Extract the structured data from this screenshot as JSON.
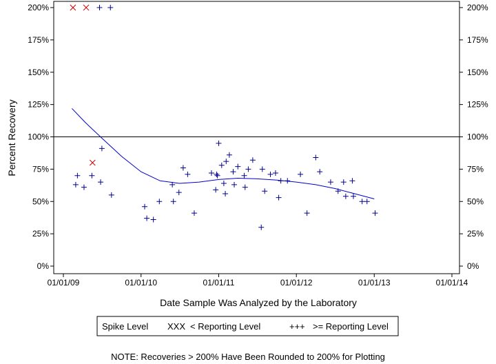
{
  "chart_data": {
    "type": "scatter",
    "xlabel": "Date Sample Was Analyzed by the Laboratory",
    "ylabel": "Percent Recovery",
    "xlim": [
      "2009-01-01",
      "2014-01-01"
    ],
    "ylim": [
      0,
      200
    ],
    "x_ticks": [
      "01/01/09",
      "01/01/10",
      "01/01/11",
      "01/01/12",
      "01/01/13",
      "01/01/14"
    ],
    "x_tick_dates": [
      "2009-01-01",
      "2010-01-01",
      "2011-01-01",
      "2012-01-01",
      "2013-01-01",
      "2014-01-01"
    ],
    "y_ticks": [
      "0%",
      "25%",
      "50%",
      "75%",
      "100%",
      "125%",
      "150%",
      "175%",
      "200%"
    ],
    "y_tick_values": [
      0,
      25,
      50,
      75,
      100,
      125,
      150,
      175,
      200
    ],
    "reference_line": 100,
    "grid": false,
    "series": [
      {
        "name": "< Reporting Level",
        "marker": "x",
        "color": "#cc0000",
        "points": [
          {
            "x": "2009-02-15",
            "y": 200
          },
          {
            "x": "2009-04-18",
            "y": 200
          },
          {
            "x": "2009-05-18",
            "y": 80
          }
        ]
      },
      {
        "name": ">= Reporting Level",
        "marker": "+",
        "color": "#00008b",
        "points": [
          {
            "x": "2009-02-28",
            "y": 63
          },
          {
            "x": "2009-03-08",
            "y": 70
          },
          {
            "x": "2009-04-08",
            "y": 61
          },
          {
            "x": "2009-05-15",
            "y": 70
          },
          {
            "x": "2009-06-20",
            "y": 200
          },
          {
            "x": "2009-06-25",
            "y": 65
          },
          {
            "x": "2009-07-01",
            "y": 91
          },
          {
            "x": "2009-08-10",
            "y": 200
          },
          {
            "x": "2009-08-15",
            "y": 55
          },
          {
            "x": "2010-01-18",
            "y": 46
          },
          {
            "x": "2010-01-28",
            "y": 37
          },
          {
            "x": "2010-02-28",
            "y": 36
          },
          {
            "x": "2010-03-28",
            "y": 50
          },
          {
            "x": "2010-05-28",
            "y": 63
          },
          {
            "x": "2010-06-02",
            "y": 50
          },
          {
            "x": "2010-06-28",
            "y": 57
          },
          {
            "x": "2010-07-18",
            "y": 76
          },
          {
            "x": "2010-08-08",
            "y": 71
          },
          {
            "x": "2010-09-08",
            "y": 41
          },
          {
            "x": "2010-11-28",
            "y": 72
          },
          {
            "x": "2010-12-18",
            "y": 59
          },
          {
            "x": "2010-12-22",
            "y": 71
          },
          {
            "x": "2010-12-26",
            "y": 70
          },
          {
            "x": "2011-01-01",
            "y": 95
          },
          {
            "x": "2011-01-15",
            "y": 78
          },
          {
            "x": "2011-01-25",
            "y": 64
          },
          {
            "x": "2011-02-01",
            "y": 56
          },
          {
            "x": "2011-02-05",
            "y": 81
          },
          {
            "x": "2011-02-20",
            "y": 86
          },
          {
            "x": "2011-03-10",
            "y": 73
          },
          {
            "x": "2011-03-15",
            "y": 63
          },
          {
            "x": "2011-04-01",
            "y": 77
          },
          {
            "x": "2011-05-01",
            "y": 70
          },
          {
            "x": "2011-05-05",
            "y": 61
          },
          {
            "x": "2011-05-20",
            "y": 75
          },
          {
            "x": "2011-06-10",
            "y": 82
          },
          {
            "x": "2011-07-20",
            "y": 30
          },
          {
            "x": "2011-07-25",
            "y": 75
          },
          {
            "x": "2011-08-05",
            "y": 58
          },
          {
            "x": "2011-09-01",
            "y": 71
          },
          {
            "x": "2011-09-25",
            "y": 72
          },
          {
            "x": "2011-10-10",
            "y": 53
          },
          {
            "x": "2011-10-20",
            "y": 66
          },
          {
            "x": "2011-11-20",
            "y": 66
          },
          {
            "x": "2012-01-20",
            "y": 71
          },
          {
            "x": "2012-02-20",
            "y": 41
          },
          {
            "x": "2012-04-01",
            "y": 84
          },
          {
            "x": "2012-04-20",
            "y": 73
          },
          {
            "x": "2012-06-10",
            "y": 65
          },
          {
            "x": "2012-07-15",
            "y": 58
          },
          {
            "x": "2012-08-10",
            "y": 65
          },
          {
            "x": "2012-08-20",
            "y": 54
          },
          {
            "x": "2012-09-20",
            "y": 66
          },
          {
            "x": "2012-09-25",
            "y": 54
          },
          {
            "x": "2012-11-05",
            "y": 50
          },
          {
            "x": "2012-11-28",
            "y": 50
          },
          {
            "x": "2013-01-05",
            "y": 41
          }
        ]
      }
    ],
    "trend_line": {
      "color": "#0000cc",
      "points": [
        {
          "x": "2009-02-10",
          "y": 122
        },
        {
          "x": "2009-04-15",
          "y": 111
        },
        {
          "x": "2009-07-01",
          "y": 99
        },
        {
          "x": "2009-10-01",
          "y": 85
        },
        {
          "x": "2010-01-01",
          "y": 73
        },
        {
          "x": "2010-04-01",
          "y": 66
        },
        {
          "x": "2010-07-01",
          "y": 64
        },
        {
          "x": "2010-10-01",
          "y": 65
        },
        {
          "x": "2011-01-01",
          "y": 67
        },
        {
          "x": "2011-04-01",
          "y": 68
        },
        {
          "x": "2011-07-01",
          "y": 67.5
        },
        {
          "x": "2011-10-01",
          "y": 66.5
        },
        {
          "x": "2012-01-01",
          "y": 65
        },
        {
          "x": "2012-04-01",
          "y": 63
        },
        {
          "x": "2012-07-01",
          "y": 60
        },
        {
          "x": "2012-10-01",
          "y": 56
        },
        {
          "x": "2013-01-01",
          "y": 52
        }
      ]
    },
    "legend": {
      "placement": "bottom-center",
      "items": [
        {
          "label": "Spike Level",
          "symbol": ""
        },
        {
          "label": "< Reporting Level",
          "symbol": "XXX",
          "color": "#cc0000"
        },
        {
          "label": ">= Reporting Level",
          "symbol": "+++",
          "color": "#00008b"
        }
      ]
    },
    "note": "NOTE: Recoveries > 200% Have Been Rounded to 200% for Plotting"
  }
}
